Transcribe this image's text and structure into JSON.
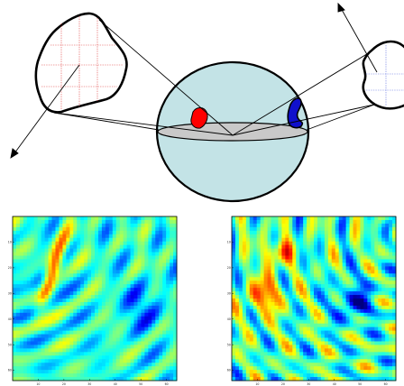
{
  "colors": {
    "sphere_fill": "#c3e3e6",
    "equator_fill": "#c9c9c9",
    "patch_left": "#ff0000",
    "patch_right": "#1010cc",
    "grid_lines": "#e04040",
    "outline": "#000000"
  },
  "panels": [
    {
      "name": "left-map",
      "x_ticks": [
        "10",
        "20",
        "30",
        "40",
        "50",
        "60"
      ],
      "y_ticks": [
        "10",
        "20",
        "30",
        "40",
        "50",
        "60"
      ]
    },
    {
      "name": "right-map",
      "x_ticks": [
        "10",
        "20",
        "30",
        "40",
        "50",
        "60"
      ],
      "y_ticks": [
        "10",
        "20",
        "30",
        "40",
        "50",
        "60"
      ]
    }
  ]
}
